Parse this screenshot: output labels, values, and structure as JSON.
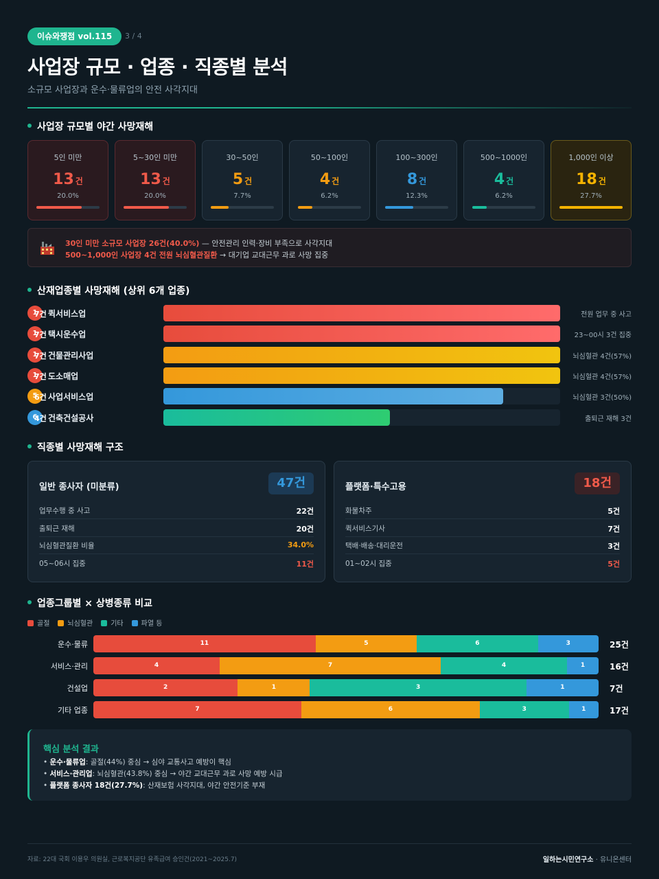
{
  "header": {
    "pill": "이슈와쟁점 vol.115",
    "page": "3 / 4",
    "title": "사업장 규모 · 업종 · 직종별 분석",
    "subtitle": "소규모 사업장과 운수·물류업의 안전 사각지대"
  },
  "sections": {
    "size": "사업장 규모별 야간 사망재해",
    "industry": "산재업종별 사망재해 (상위 6개 업종)",
    "job": "직종별 사망재해 구조",
    "group": "업종그룹별 × 상병종류 비교"
  },
  "size_cards": [
    {
      "label": "5인 미만",
      "count": "13",
      "unit": "건",
      "pct": "20.0%",
      "value": 20.0,
      "color": "#f05a4a",
      "style": "red"
    },
    {
      "label": "5~30인 미만",
      "count": "13",
      "unit": "건",
      "pct": "20.0%",
      "value": 20.0,
      "color": "#f05a4a",
      "style": "red"
    },
    {
      "label": "30~50인",
      "count": "5",
      "unit": "건",
      "pct": "7.7%",
      "value": 7.7,
      "color": "#f39c12",
      "style": ""
    },
    {
      "label": "50~100인",
      "count": "4",
      "unit": "건",
      "pct": "6.2%",
      "value": 6.2,
      "color": "#f39c12",
      "style": ""
    },
    {
      "label": "100~300인",
      "count": "8",
      "unit": "건",
      "pct": "12.3%",
      "value": 12.3,
      "color": "#3498db",
      "style": ""
    },
    {
      "label": "500~1000인",
      "count": "4",
      "unit": "건",
      "pct": "6.2%",
      "value": 6.2,
      "color": "#1abc9c",
      "style": ""
    },
    {
      "label": "1,000인 이상",
      "count": "18",
      "unit": "건",
      "pct": "27.7%",
      "value": 27.7,
      "color": "#f5b301",
      "style": "gold"
    }
  ],
  "alert": {
    "icon": "factory-icon",
    "line1_bold": "30인 미만 소규모 사업장 26건(40.0%)",
    "line1_rest": " — 안전관리 인력·장비 부족으로 사각지대",
    "line2_bold": "500~1,000인 사업장 4건 전원 뇌심혈관질환",
    "line2_rest": " → 대기업 교대근무 과로 사망 집중"
  },
  "chart_data": [
    {
      "type": "bar",
      "categories": [
        "퀵서비스업",
        "택시운수업",
        "건물관리사업",
        "도소매업",
        "사업서비스업",
        "건축건설공사"
      ],
      "ranks": [
        "1",
        "1",
        "1",
        "1",
        "5",
        "6"
      ],
      "values": [
        7,
        7,
        7,
        7,
        6,
        4
      ],
      "value_labels": [
        "7건",
        "7건",
        "7건",
        "7건",
        "6건",
        "4건"
      ],
      "notes": [
        "전원 업무 중 사고",
        "23~00시 3건 집중",
        "뇌심혈관 4건(57%)",
        "뇌심혈관 4건(57%)",
        "뇌심혈관 3건(50%)",
        "출퇴근 재해 3건"
      ],
      "colors": [
        [
          "#e74c3c",
          "#ff6b6b"
        ],
        [
          "#e74c3c",
          "#ff6b6b"
        ],
        [
          "#f39c12",
          "#f1c40f"
        ],
        [
          "#f39c12",
          "#f1c40f"
        ],
        [
          "#3498db",
          "#5dade2"
        ],
        [
          "#1abc9c",
          "#2ecc71"
        ]
      ],
      "badge_colors": [
        "#e74c3c",
        "#e74c3c",
        "#e74c3c",
        "#e74c3c",
        "#f39c12",
        "#3498db"
      ],
      "xlim": [
        0,
        7
      ]
    },
    {
      "type": "bar",
      "stacked": true,
      "categories": [
        "운수·물류",
        "서비스·관리",
        "건설업",
        "기타 업종"
      ],
      "series": [
        {
          "name": "골절",
          "color": "#e74c3c",
          "values": [
            11,
            4,
            2,
            7
          ]
        },
        {
          "name": "뇌심혈관",
          "color": "#f39c12",
          "values": [
            5,
            7,
            1,
            6
          ]
        },
        {
          "name": "기타",
          "color": "#1abc9c",
          "values": [
            6,
            4,
            3,
            3
          ]
        },
        {
          "name": "파열 등",
          "color": "#3498db",
          "values": [
            3,
            1,
            1,
            1
          ]
        }
      ],
      "totals": [
        "25건",
        "16건",
        "7건",
        "17건"
      ]
    }
  ],
  "panels": [
    {
      "title": "일반 종사자 (미분류)",
      "big": "47건",
      "big_color": "#3498db",
      "big_bg": "#1c3a55",
      "rows": [
        {
          "label": "업무수행 중 사고",
          "value": "22건",
          "color": "#ffffff"
        },
        {
          "label": "출퇴근 재해",
          "value": "20건",
          "color": "#ffffff"
        },
        {
          "label": "뇌심혈관질환 비율",
          "value": "34.0%",
          "color": "#f39c12"
        },
        {
          "label": "05~06시 집중",
          "value": "11건",
          "color": "#f05a4a"
        }
      ]
    },
    {
      "title": "플랫폼·특수고용",
      "big": "18건",
      "big_color": "#f05a4a",
      "big_bg": "#3a2226",
      "rows": [
        {
          "label": "화물차주",
          "value": "5건",
          "color": "#ffffff"
        },
        {
          "label": "퀵서비스기사",
          "value": "7건",
          "color": "#ffffff"
        },
        {
          "label": "택배·배송·대리운전",
          "value": "3건",
          "color": "#ffffff"
        },
        {
          "label": "01~02시 집중",
          "value": "5건",
          "color": "#f05a4a"
        }
      ]
    }
  ],
  "summary": {
    "heading": "핵심 분석 결과",
    "lines": [
      {
        "bold": "운수·물류업",
        "rest": ": 골절(44%) 중심 → 심야 교통사고 예방이 핵심"
      },
      {
        "bold": "서비스·관리업",
        "rest": ": 뇌심혈관(43.8%) 중심 → 야간 교대근무 과로 사망 예방 시급"
      },
      {
        "bold": "플랫폼 종사자 18건(27.7%)",
        "rest": ": 산재보험 사각지대, 야간 안전기준 부재"
      }
    ]
  },
  "footer": {
    "source": "자료: 22대 국회 이용우 의원실, 근로복지공단 유족급여 승인건(2021~2025.7)",
    "credit_bold": "일하는시민연구소",
    "credit_rest": " · 유니온센터"
  }
}
